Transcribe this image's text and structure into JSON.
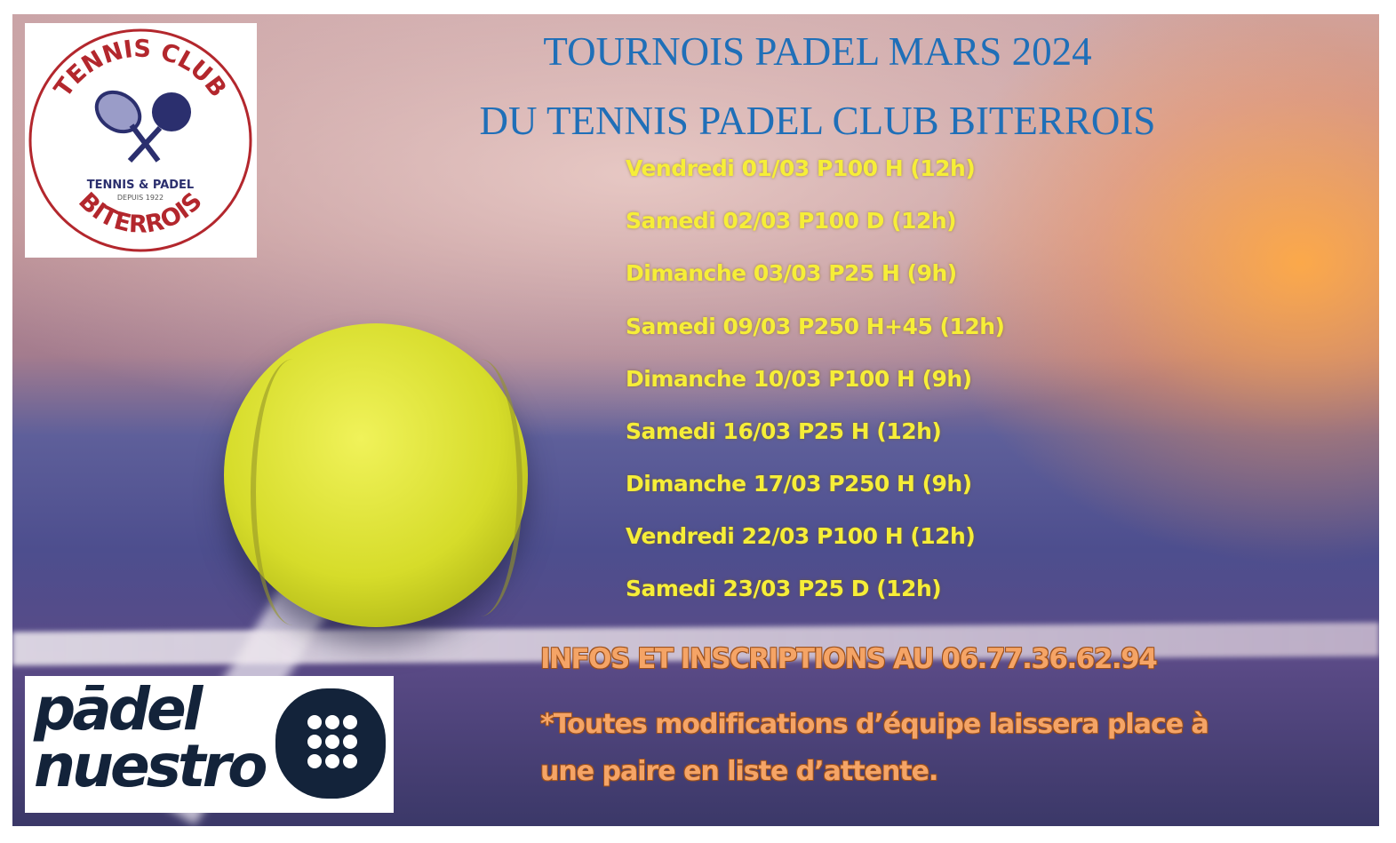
{
  "title_line1": "TOURNOIS PADEL MARS 2024",
  "title_line2": "DU TENNIS PADEL CLUB BITERROIS",
  "schedule": [
    "Vendredi 01/03 P100 H (12h)",
    "Samedi 02/03 P100 D (12h)",
    "Dimanche 03/03 P25 H (9h)",
    "Samedi 09/03 P250 H+45 (12h)",
    "Dimanche 10/03 P100 H (9h)",
    "Samedi 16/03 P25 H (12h)",
    "Dimanche 17/03 P250 H (9h)",
    "Vendredi 22/03 P100 H (12h)",
    "Samedi 23/03 P25 D (12h)"
  ],
  "info": "INFOS ET INSCRIPTIONS AU 06.77.36.62.94",
  "note_line1": "*Toutes modifications d’équipe laissera place à",
  "note_line2": "une paire en liste d’attente.",
  "club_logo": {
    "top": "TENNIS CLUB",
    "middle": "TENNIS & PADEL",
    "since": "DEPUIS 1922",
    "bottom": "BITERROIS"
  },
  "sponsor_logo": {
    "line1": "pādel",
    "line2": "nuestro"
  },
  "colors": {
    "title": "#1f6fb8",
    "schedule": "#f6ee38",
    "info": "#f5a466",
    "logo_red": "#b3272d",
    "logo_navy": "#2b2f6e",
    "sponsor": "#13233a"
  }
}
